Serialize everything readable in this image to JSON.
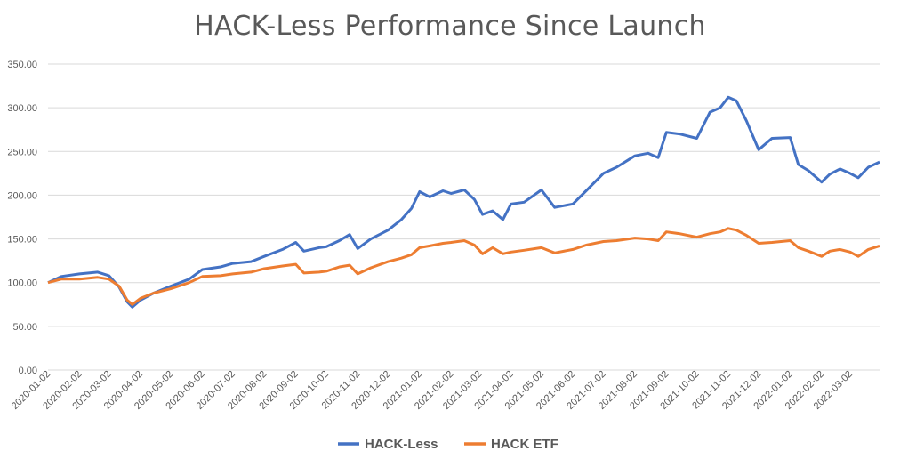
{
  "chart_data": {
    "type": "line",
    "title": "HACK-Less Performance Since Launch",
    "xlabel": "",
    "ylabel": "",
    "ylim": [
      0,
      350
    ],
    "y_ticks": [
      "0.00",
      "50.00",
      "100.00",
      "150.00",
      "200.00",
      "250.00",
      "300.00",
      "350.00"
    ],
    "x_tick_labels": [
      "2020-01-02",
      "2020-02-02",
      "2020-03-02",
      "2020-04-02",
      "2020-05-02",
      "2020-06-02",
      "2020-07-02",
      "2020-08-02",
      "2020-09-02",
      "2020-10-02",
      "2020-11-02",
      "2020-12-02",
      "2021-01-02",
      "2021-02-02",
      "2021-03-02",
      "2021-04-02",
      "2021-05-02",
      "2021-06-02",
      "2021-07-02",
      "2021-08-02",
      "2021-09-02",
      "2021-10-02",
      "2021-11-02",
      "2021-12-02",
      "2022-01-02",
      "2022-02-02",
      "2022-03-02"
    ],
    "x_range": [
      "2020-01-02",
      "2022-03-31"
    ],
    "grid": "horizontal",
    "legend_position": "bottom",
    "series": [
      {
        "name": "HACK-Less",
        "color": "#4472c4",
        "points": [
          [
            "2020-01-02",
            100
          ],
          [
            "2020-01-15",
            107
          ],
          [
            "2020-02-02",
            110
          ],
          [
            "2020-02-20",
            112
          ],
          [
            "2020-03-02",
            108
          ],
          [
            "2020-03-12",
            95
          ],
          [
            "2020-03-20",
            78
          ],
          [
            "2020-03-25",
            72
          ],
          [
            "2020-04-02",
            80
          ],
          [
            "2020-04-15",
            88
          ],
          [
            "2020-05-02",
            96
          ],
          [
            "2020-05-20",
            104
          ],
          [
            "2020-06-02",
            115
          ],
          [
            "2020-06-20",
            118
          ],
          [
            "2020-07-02",
            122
          ],
          [
            "2020-07-20",
            124
          ],
          [
            "2020-08-02",
            130
          ],
          [
            "2020-08-20",
            138
          ],
          [
            "2020-09-02",
            146
          ],
          [
            "2020-09-10",
            136
          ],
          [
            "2020-09-25",
            140
          ],
          [
            "2020-10-02",
            141
          ],
          [
            "2020-10-15",
            148
          ],
          [
            "2020-10-25",
            155
          ],
          [
            "2020-11-02",
            139
          ],
          [
            "2020-11-15",
            150
          ],
          [
            "2020-12-02",
            160
          ],
          [
            "2020-12-15",
            172
          ],
          [
            "2020-12-25",
            185
          ],
          [
            "2021-01-02",
            204
          ],
          [
            "2021-01-12",
            198
          ],
          [
            "2021-01-25",
            205
          ],
          [
            "2021-02-02",
            202
          ],
          [
            "2021-02-15",
            206
          ],
          [
            "2021-02-25",
            195
          ],
          [
            "2021-03-05",
            178
          ],
          [
            "2021-03-15",
            182
          ],
          [
            "2021-03-25",
            172
          ],
          [
            "2021-04-02",
            190
          ],
          [
            "2021-04-15",
            192
          ],
          [
            "2021-05-02",
            206
          ],
          [
            "2021-05-15",
            186
          ],
          [
            "2021-06-02",
            190
          ],
          [
            "2021-06-15",
            205
          ],
          [
            "2021-07-02",
            225
          ],
          [
            "2021-07-15",
            232
          ],
          [
            "2021-08-02",
            245
          ],
          [
            "2021-08-15",
            248
          ],
          [
            "2021-08-25",
            243
          ],
          [
            "2021-09-02",
            272
          ],
          [
            "2021-09-15",
            270
          ],
          [
            "2021-10-02",
            265
          ],
          [
            "2021-10-15",
            295
          ],
          [
            "2021-10-25",
            300
          ],
          [
            "2021-11-02",
            312
          ],
          [
            "2021-11-10",
            308
          ],
          [
            "2021-11-20",
            285
          ],
          [
            "2021-12-02",
            252
          ],
          [
            "2021-12-15",
            265
          ],
          [
            "2022-01-02",
            266
          ],
          [
            "2022-01-10",
            235
          ],
          [
            "2022-01-20",
            228
          ],
          [
            "2022-02-02",
            215
          ],
          [
            "2022-02-10",
            224
          ],
          [
            "2022-02-20",
            230
          ],
          [
            "2022-03-02",
            225
          ],
          [
            "2022-03-10",
            220
          ],
          [
            "2022-03-20",
            232
          ],
          [
            "2022-03-31",
            238
          ]
        ]
      },
      {
        "name": "HACK ETF",
        "color": "#ed7d31",
        "points": [
          [
            "2020-01-02",
            100
          ],
          [
            "2020-01-15",
            104
          ],
          [
            "2020-02-02",
            104
          ],
          [
            "2020-02-20",
            106
          ],
          [
            "2020-03-02",
            104
          ],
          [
            "2020-03-12",
            96
          ],
          [
            "2020-03-20",
            80
          ],
          [
            "2020-03-25",
            75
          ],
          [
            "2020-04-02",
            82
          ],
          [
            "2020-04-15",
            88
          ],
          [
            "2020-05-02",
            93
          ],
          [
            "2020-05-20",
            100
          ],
          [
            "2020-06-02",
            107
          ],
          [
            "2020-06-20",
            108
          ],
          [
            "2020-07-02",
            110
          ],
          [
            "2020-07-20",
            112
          ],
          [
            "2020-08-02",
            116
          ],
          [
            "2020-08-20",
            119
          ],
          [
            "2020-09-02",
            121
          ],
          [
            "2020-09-10",
            111
          ],
          [
            "2020-09-25",
            112
          ],
          [
            "2020-10-02",
            113
          ],
          [
            "2020-10-15",
            118
          ],
          [
            "2020-10-25",
            120
          ],
          [
            "2020-11-02",
            110
          ],
          [
            "2020-11-15",
            117
          ],
          [
            "2020-12-02",
            124
          ],
          [
            "2020-12-15",
            128
          ],
          [
            "2020-12-25",
            132
          ],
          [
            "2021-01-02",
            140
          ],
          [
            "2021-01-12",
            142
          ],
          [
            "2021-01-25",
            145
          ],
          [
            "2021-02-02",
            146
          ],
          [
            "2021-02-15",
            148
          ],
          [
            "2021-02-25",
            143
          ],
          [
            "2021-03-05",
            133
          ],
          [
            "2021-03-15",
            140
          ],
          [
            "2021-03-25",
            133
          ],
          [
            "2021-04-02",
            135
          ],
          [
            "2021-04-15",
            137
          ],
          [
            "2021-05-02",
            140
          ],
          [
            "2021-05-15",
            134
          ],
          [
            "2021-06-02",
            138
          ],
          [
            "2021-06-15",
            143
          ],
          [
            "2021-07-02",
            147
          ],
          [
            "2021-07-15",
            148
          ],
          [
            "2021-08-02",
            151
          ],
          [
            "2021-08-15",
            150
          ],
          [
            "2021-08-25",
            148
          ],
          [
            "2021-09-02",
            158
          ],
          [
            "2021-09-15",
            156
          ],
          [
            "2021-10-02",
            152
          ],
          [
            "2021-10-15",
            156
          ],
          [
            "2021-10-25",
            158
          ],
          [
            "2021-11-02",
            162
          ],
          [
            "2021-11-10",
            160
          ],
          [
            "2021-11-20",
            154
          ],
          [
            "2021-12-02",
            145
          ],
          [
            "2021-12-15",
            146
          ],
          [
            "2022-01-02",
            148
          ],
          [
            "2022-01-10",
            140
          ],
          [
            "2022-01-20",
            136
          ],
          [
            "2022-02-02",
            130
          ],
          [
            "2022-02-10",
            136
          ],
          [
            "2022-02-20",
            138
          ],
          [
            "2022-03-02",
            135
          ],
          [
            "2022-03-10",
            130
          ],
          [
            "2022-03-20",
            138
          ],
          [
            "2022-03-31",
            142
          ]
        ]
      }
    ]
  }
}
